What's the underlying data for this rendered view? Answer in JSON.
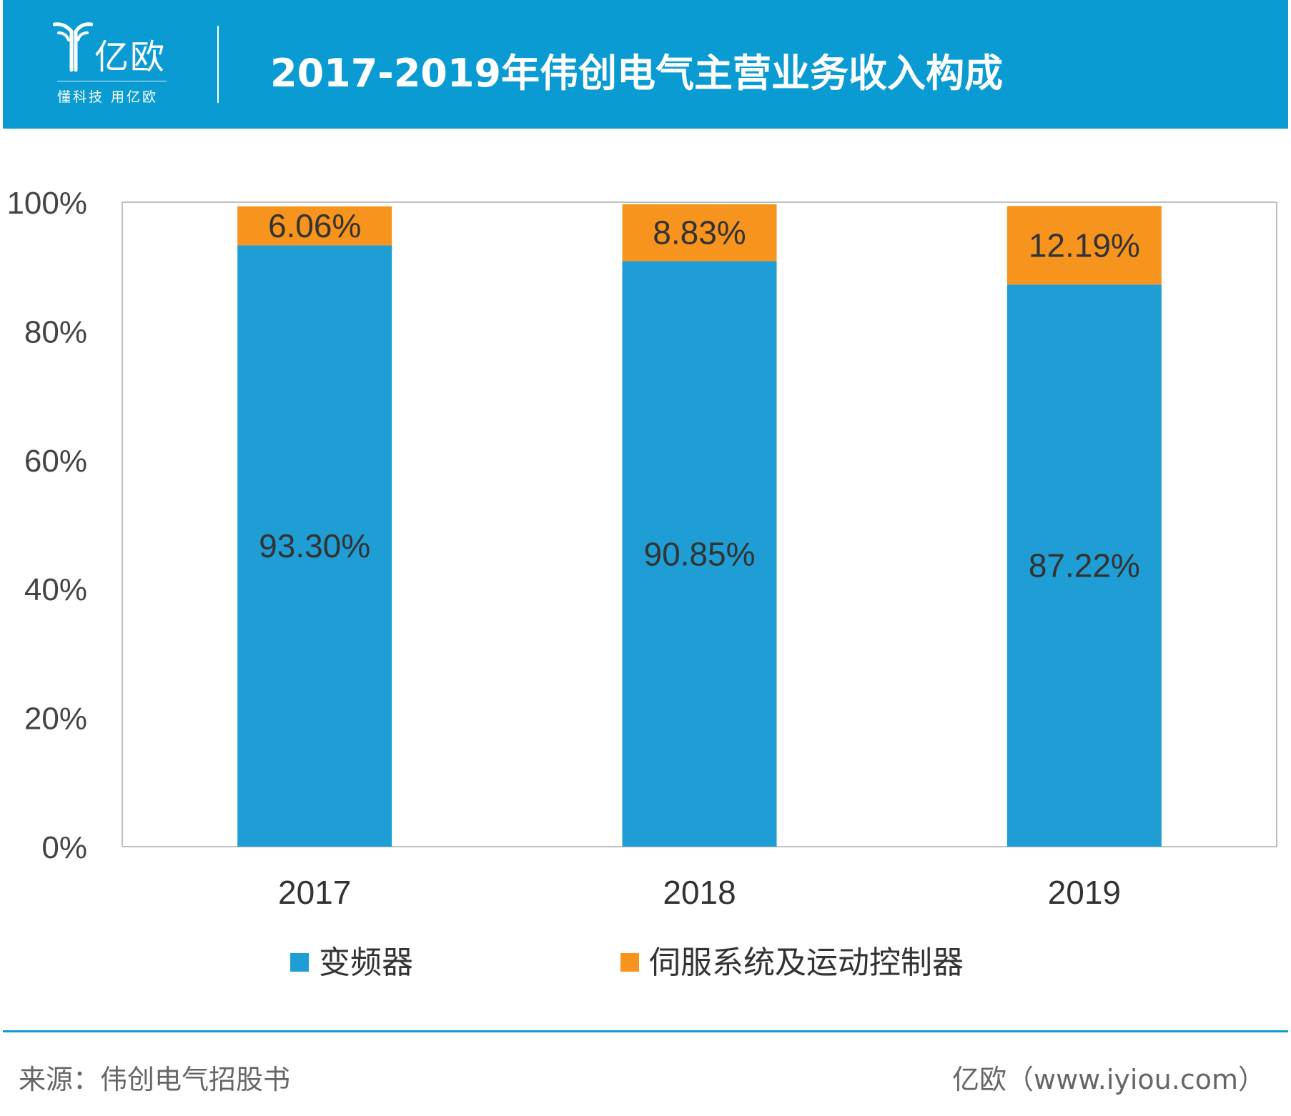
{
  "header": {
    "logo_name": "亿欧",
    "logo_slogan": "懂科技 用亿欧",
    "title": "2017-2019年伟创电气主营业务收入构成"
  },
  "chart_data": {
    "type": "bar",
    "stacked": true,
    "title": "2017-2019年伟创电气主营业务收入构成",
    "categories": [
      "2017",
      "2018",
      "2019"
    ],
    "series": [
      {
        "name": "变频器",
        "values": [
          93.3,
          90.85,
          87.22
        ],
        "labels": [
          "93.30%",
          "90.85%",
          "87.22%"
        ],
        "color": "#1e9ed4"
      },
      {
        "name": "伺服系统及运动控制器",
        "values": [
          6.06,
          8.83,
          12.19
        ],
        "labels": [
          "6.06%",
          "8.83%",
          "12.19%"
        ],
        "color": "#f7941d"
      }
    ],
    "ylim": [
      0,
      100
    ],
    "yticks": [
      "0%",
      "20%",
      "40%",
      "60%",
      "80%",
      "100%"
    ],
    "grid": false,
    "legend_position": "bottom"
  },
  "footer": {
    "source": "来源：伟创电气招股书",
    "credit": "亿欧（www.iyiou.com）"
  },
  "colors": {
    "header_bg": "#0b9bd3",
    "axis": "#bfbfbf"
  }
}
